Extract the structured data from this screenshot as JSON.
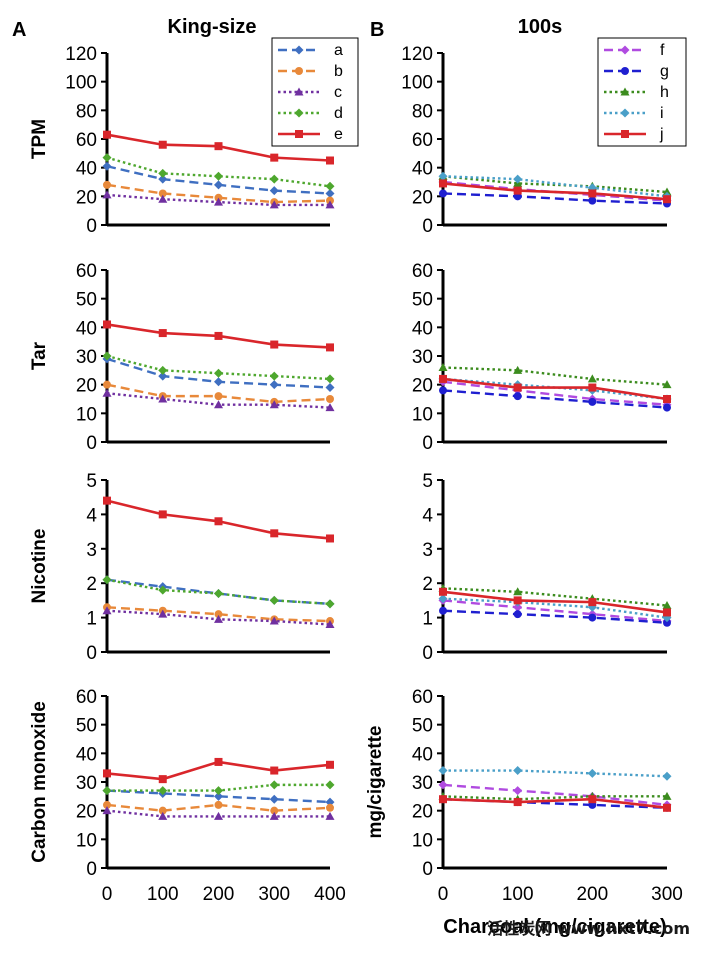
{
  "figure": {
    "panel_a_label": "A",
    "panel_b_label": "B",
    "title_a": "King-size",
    "title_b": "100s",
    "x_label": "Charcoal (mg/cigarette)",
    "y_label_shared": "mg/cigarette",
    "watermark": "活性炭网 www.hxt7.com"
  },
  "series_styles": {
    "a": {
      "color": "#3F6FC1",
      "dash": "dash",
      "marker": "diamond"
    },
    "b": {
      "color": "#E8893A",
      "dash": "dash",
      "marker": "circle"
    },
    "c": {
      "color": "#7030A0",
      "dash": "dot",
      "marker": "triangle"
    },
    "d": {
      "color": "#4EA72E",
      "dash": "dot",
      "marker": "diamond"
    },
    "e": {
      "color": "#D9262B",
      "dash": "solid",
      "marker": "square"
    },
    "f": {
      "color": "#B04BE0",
      "dash": "dash",
      "marker": "diamond"
    },
    "g": {
      "color": "#1F1FD0",
      "dash": "dash",
      "marker": "circle"
    },
    "h": {
      "color": "#3C8C1E",
      "dash": "dot",
      "marker": "triangle"
    },
    "i": {
      "color": "#4A9FC8",
      "dash": "dot",
      "marker": "diamond"
    },
    "j": {
      "color": "#D9262B",
      "dash": "solid",
      "marker": "square"
    }
  },
  "chart_data": [
    {
      "id": "A-TPM",
      "type": "line",
      "panel": "A",
      "ylabel": "TPM",
      "x": [
        0,
        100,
        200,
        300,
        400
      ],
      "ylim": [
        0,
        120
      ],
      "yticks": [
        0,
        20,
        40,
        60,
        80,
        100,
        120
      ],
      "xticks": [],
      "legend": [
        "a",
        "b",
        "c",
        "d",
        "e"
      ],
      "series": [
        {
          "name": "a",
          "values": [
            41,
            32,
            28,
            24,
            22
          ]
        },
        {
          "name": "b",
          "values": [
            28,
            22,
            19,
            16,
            17
          ]
        },
        {
          "name": "c",
          "values": [
            21,
            18,
            16,
            14,
            14
          ]
        },
        {
          "name": "d",
          "values": [
            47,
            36,
            34,
            32,
            27
          ]
        },
        {
          "name": "e",
          "values": [
            63,
            56,
            55,
            47,
            45
          ]
        }
      ]
    },
    {
      "id": "B-TPM",
      "type": "line",
      "panel": "B",
      "ylabel": "",
      "x": [
        0,
        100,
        200,
        300
      ],
      "ylim": [
        0,
        120
      ],
      "yticks": [
        0,
        20,
        40,
        60,
        80,
        100,
        120
      ],
      "xticks": [],
      "legend": [
        "f",
        "g",
        "h",
        "i",
        "j"
      ],
      "series": [
        {
          "name": "f",
          "values": [
            30,
            25,
            21,
            17
          ]
        },
        {
          "name": "g",
          "values": [
            22,
            20,
            17,
            15
          ]
        },
        {
          "name": "h",
          "values": [
            34,
            29,
            27,
            23
          ]
        },
        {
          "name": "i",
          "values": [
            34,
            32,
            26,
            20
          ]
        },
        {
          "name": "j",
          "values": [
            29,
            24,
            22,
            18
          ]
        }
      ]
    },
    {
      "id": "A-Tar",
      "type": "line",
      "panel": "A",
      "ylabel": "Tar",
      "x": [
        0,
        100,
        200,
        300,
        400
      ],
      "ylim": [
        0,
        60
      ],
      "yticks": [
        0,
        10,
        20,
        30,
        40,
        50,
        60
      ],
      "xticks": [],
      "legend": [],
      "series": [
        {
          "name": "a",
          "values": [
            29,
            23,
            21,
            20,
            19
          ]
        },
        {
          "name": "b",
          "values": [
            20,
            16,
            16,
            14,
            15
          ]
        },
        {
          "name": "c",
          "values": [
            17,
            15,
            13,
            13,
            12
          ]
        },
        {
          "name": "d",
          "values": [
            30,
            25,
            24,
            23,
            22
          ]
        },
        {
          "name": "e",
          "values": [
            41,
            38,
            37,
            34,
            33
          ]
        }
      ]
    },
    {
      "id": "B-Tar",
      "type": "line",
      "panel": "B",
      "ylabel": "",
      "x": [
        0,
        100,
        200,
        300
      ],
      "ylim": [
        0,
        60
      ],
      "yticks": [
        0,
        10,
        20,
        30,
        40,
        50,
        60
      ],
      "xticks": [],
      "legend": [],
      "series": [
        {
          "name": "f",
          "values": [
            21,
            18,
            15,
            13
          ]
        },
        {
          "name": "g",
          "values": [
            18,
            16,
            14,
            12
          ]
        },
        {
          "name": "h",
          "values": [
            26,
            25,
            22,
            20
          ]
        },
        {
          "name": "i",
          "values": [
            22,
            20,
            18,
            15
          ]
        },
        {
          "name": "j",
          "values": [
            22,
            19,
            19,
            15
          ]
        }
      ]
    },
    {
      "id": "A-Nicotine",
      "type": "line",
      "panel": "A",
      "ylabel": "Nicotine",
      "x": [
        0,
        100,
        200,
        300,
        400
      ],
      "ylim": [
        0,
        5
      ],
      "yticks": [
        0,
        1,
        2,
        3,
        4,
        5
      ],
      "xticks": [],
      "legend": [],
      "series": [
        {
          "name": "a",
          "values": [
            2.1,
            1.9,
            1.7,
            1.5,
            1.4
          ]
        },
        {
          "name": "b",
          "values": [
            1.3,
            1.2,
            1.1,
            0.95,
            0.9
          ]
        },
        {
          "name": "c",
          "values": [
            1.2,
            1.1,
            0.95,
            0.9,
            0.8
          ]
        },
        {
          "name": "d",
          "values": [
            2.1,
            1.8,
            1.7,
            1.5,
            1.4
          ]
        },
        {
          "name": "e",
          "values": [
            4.4,
            4.0,
            3.8,
            3.45,
            3.3
          ]
        }
      ]
    },
    {
      "id": "B-Nicotine",
      "type": "line",
      "panel": "B",
      "ylabel": "",
      "x": [
        0,
        100,
        200,
        300
      ],
      "ylim": [
        0,
        5
      ],
      "yticks": [
        0,
        1,
        2,
        3,
        4,
        5
      ],
      "xticks": [],
      "legend": [],
      "series": [
        {
          "name": "f",
          "values": [
            1.5,
            1.3,
            1.1,
            0.9
          ]
        },
        {
          "name": "g",
          "values": [
            1.2,
            1.1,
            1.0,
            0.85
          ]
        },
        {
          "name": "h",
          "values": [
            1.85,
            1.75,
            1.55,
            1.35
          ]
        },
        {
          "name": "i",
          "values": [
            1.55,
            1.45,
            1.3,
            1.0
          ]
        },
        {
          "name": "j",
          "values": [
            1.75,
            1.5,
            1.45,
            1.15
          ]
        }
      ]
    },
    {
      "id": "A-CO",
      "type": "line",
      "panel": "A",
      "ylabel": "Carbon monoxide",
      "x": [
        0,
        100,
        200,
        300,
        400
      ],
      "ylim": [
        0,
        60
      ],
      "yticks": [
        0,
        10,
        20,
        30,
        40,
        50,
        60
      ],
      "xticks": [
        0,
        100,
        200,
        300,
        400
      ],
      "legend": [],
      "series": [
        {
          "name": "a",
          "values": [
            27,
            26,
            25,
            24,
            23
          ]
        },
        {
          "name": "b",
          "values": [
            22,
            20,
            22,
            20,
            21
          ]
        },
        {
          "name": "c",
          "values": [
            20,
            18,
            18,
            18,
            18
          ]
        },
        {
          "name": "d",
          "values": [
            27,
            27,
            27,
            29,
            29
          ]
        },
        {
          "name": "e",
          "values": [
            33,
            31,
            37,
            34,
            36
          ]
        }
      ]
    },
    {
      "id": "B-CO",
      "type": "line",
      "panel": "B",
      "ylabel": "mg/cigarette",
      "x": [
        0,
        100,
        200,
        300
      ],
      "ylim": [
        0,
        60
      ],
      "yticks": [
        0,
        10,
        20,
        30,
        40,
        50,
        60
      ],
      "xticks": [
        0,
        100,
        200,
        300
      ],
      "legend": [],
      "series": [
        {
          "name": "f",
          "values": [
            29,
            27,
            25,
            22
          ]
        },
        {
          "name": "g",
          "values": [
            24,
            23,
            22,
            21
          ]
        },
        {
          "name": "h",
          "values": [
            25,
            24,
            25,
            25
          ]
        },
        {
          "name": "i",
          "values": [
            34,
            34,
            33,
            32
          ]
        },
        {
          "name": "j",
          "values": [
            24,
            23,
            24,
            21
          ]
        }
      ]
    }
  ]
}
